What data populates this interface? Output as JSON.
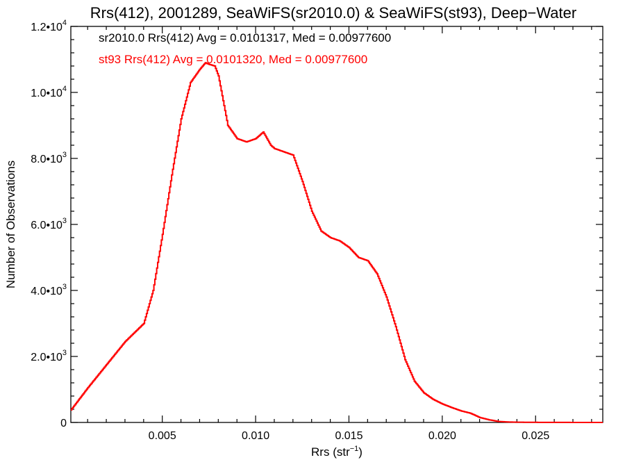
{
  "chart_data": {
    "type": "line",
    "title": "Rrs(412), 2001289, SeaWiFS(sr2010.0) & SeaWiFS(st93), Deep−Water",
    "xlabel": {
      "base": "Rrs (str",
      "sup": "−1",
      "close": ")"
    },
    "ylabel": "Number of Observations",
    "xlim": [
      0.0001,
      0.0286
    ],
    "ylim": [
      0,
      12000
    ],
    "x_ticks": [
      {
        "value": 0.005,
        "label": "0.005"
      },
      {
        "value": 0.01,
        "label": "0.010"
      },
      {
        "value": 0.015,
        "label": "0.015"
      },
      {
        "value": 0.02,
        "label": "0.020"
      },
      {
        "value": 0.025,
        "label": "0.025"
      }
    ],
    "y_ticks": [
      {
        "value": 0,
        "base": "0",
        "exp": ""
      },
      {
        "value": 2000,
        "base": "2.0•10",
        "exp": "3"
      },
      {
        "value": 4000,
        "base": "4.0•10",
        "exp": "3"
      },
      {
        "value": 6000,
        "base": "6.0•10",
        "exp": "3"
      },
      {
        "value": 8000,
        "base": "8.0•10",
        "exp": "3"
      },
      {
        "value": 10000,
        "base": "1.0•10",
        "exp": "4"
      },
      {
        "value": 12000,
        "base": "1.2•10",
        "exp": "4"
      }
    ],
    "annotations": [
      {
        "text": "sr2010.0 Rrs(412) Avg = 0.0101317, Med = 0.00977600",
        "color": "#000000"
      },
      {
        "text": "st93 Rrs(412) Avg = 0.0101320, Med = 0.00977600",
        "color": "#ff0000"
      }
    ],
    "series": [
      {
        "color": "#ff0000",
        "x": [
          0.0001,
          0.001,
          0.002,
          0.003,
          0.004,
          0.0045,
          0.005,
          0.0055,
          0.006,
          0.0065,
          0.007,
          0.0073,
          0.0075,
          0.0078,
          0.008,
          0.0085,
          0.009,
          0.0095,
          0.01,
          0.0104,
          0.0108,
          0.011,
          0.0115,
          0.012,
          0.0125,
          0.013,
          0.0135,
          0.014,
          0.0145,
          0.015,
          0.0155,
          0.016,
          0.0165,
          0.017,
          0.0175,
          0.018,
          0.0185,
          0.019,
          0.0195,
          0.02,
          0.0205,
          0.021,
          0.0215,
          0.022,
          0.0225,
          0.023,
          0.0235,
          0.024,
          0.025,
          0.026,
          0.0286
        ],
        "values": [
          380,
          1050,
          1750,
          2450,
          3000,
          4000,
          5700,
          7500,
          9200,
          10300,
          10700,
          10900,
          10850,
          10800,
          10500,
          9000,
          8600,
          8500,
          8600,
          8800,
          8400,
          8300,
          8200,
          8100,
          7300,
          6400,
          5800,
          5600,
          5500,
          5300,
          5000,
          4900,
          4500,
          3800,
          2900,
          1900,
          1250,
          900,
          700,
          560,
          450,
          350,
          280,
          150,
          80,
          30,
          15,
          8,
          4,
          2,
          0
        ]
      }
    ]
  }
}
